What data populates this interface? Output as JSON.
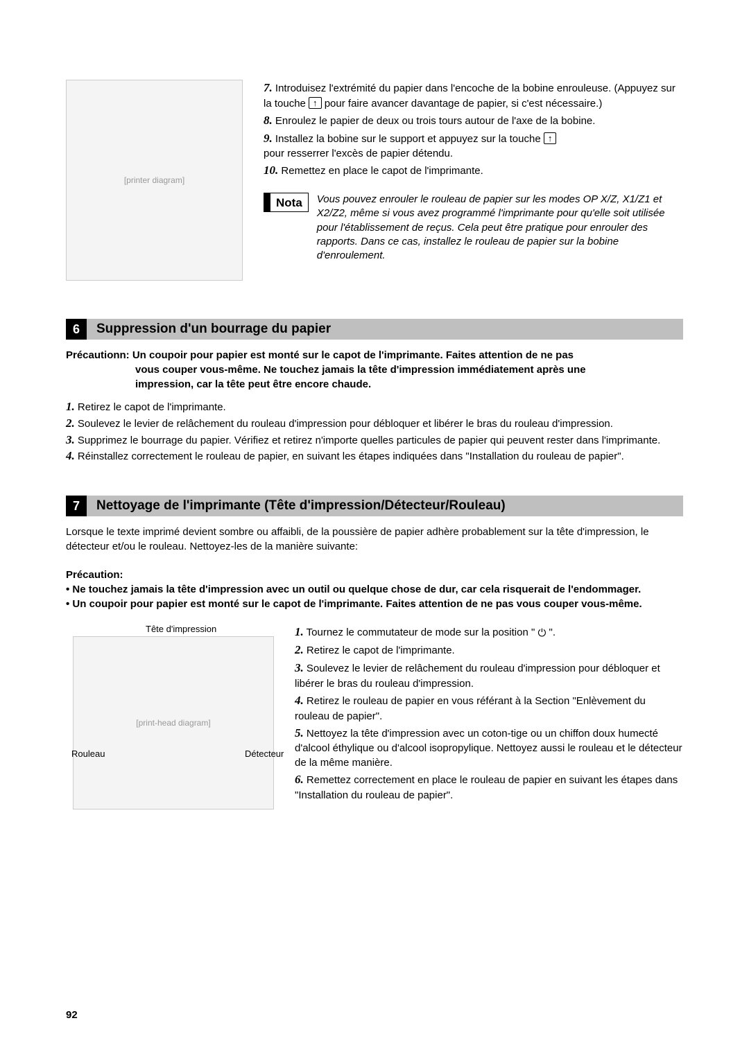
{
  "topSteps": {
    "s7a": "Introduisez l'extrémité du papier dans l'encoche de la bobine enrouleuse. (Appuyez sur la touche ",
    "s7b": " pour faire avancer davantage de papier, si c'est nécessaire.)",
    "s8": "Enroulez le papier de deux ou trois tours autour de l'axe de la bobine.",
    "s9a": "Installez la bobine sur le support et appuyez sur la touche ",
    "s9b": " pour resserrer l'excès de papier détendu.",
    "s10": "Remettez en place le capot de l'imprimante.",
    "keyUp": "↑"
  },
  "nota": {
    "label": "Nota",
    "text": "Vous pouvez enrouler le rouleau de papier sur les modes OP X/Z, X1/Z1 et X2/Z2, même si vous avez programmé l'imprimante pour qu'elle soit utilisée pour l'établissement de reçus. Cela peut être pratique pour enrouler des rapports. Dans ce cas, installez le rouleau de papier sur la bobine d'enroulement."
  },
  "section6": {
    "num": "6",
    "title": "Suppression d'un bourrage du papier",
    "precaution_lead": "Précautionn: Un coupoir pour papier est monté sur le capot de l'imprimante. Faites attention de ne pas",
    "precaution_l2": "vous couper vous-même. Ne touchez jamais la tête d'impression immédiatement après une",
    "precaution_l3": "impression, car la tête peut être encore chaude.",
    "s1": "Retirez le capot de l'imprimante.",
    "s2": "Soulevez le levier de relâchement du rouleau d'impression pour débloquer et libérer le bras du rouleau d'impression.",
    "s3": "Supprimez le bourrage du papier. Vérifiez et retirez n'importe quelles particules de papier qui peuvent rester dans l'imprimante.",
    "s4": "Réinstallez correctement le rouleau de papier, en suivant les étapes indiquées dans \"Installation du rouleau de papier\"."
  },
  "section7": {
    "num": "7",
    "title": "Nettoyage de l'imprimante (Tête d'impression/Détecteur/Rouleau)",
    "intro": "Lorsque le texte imprimé devient sombre ou affaibli, de la poussière de papier adhère probablement sur la tête d'impression, le détecteur et/ou le rouleau. Nettoyez-les de la manière suivante:",
    "caution_head": "Précaution:",
    "caution_b1": "• Ne touchez jamais la tête d'impression avec un outil ou quelque chose de dur, car cela risquerait de l'endommager.",
    "caution_b2": "• Un coupoir pour papier est monté sur le capot de l'imprimante. Faites attention de ne pas vous couper vous-même.",
    "labels": {
      "top": "Tête d'impression",
      "left": "Rouleau",
      "right": "Détecteur"
    },
    "s1a": "Tournez le commutateur de mode sur la position \" ",
    "s1b": " \".",
    "power": "⏻",
    "s2": "Retirez le capot de l'imprimante.",
    "s3": "Soulevez le levier de relâchement du rouleau d'impression pour débloquer et libérer le bras du rouleau d'impression.",
    "s4": "Retirez le rouleau de papier en vous référant à la Section \"Enlèvement du rouleau de papier\".",
    "s5": "Nettoyez la tête d'impression avec un coton-tige ou un chiffon doux humecté d'alcool éthylique ou d'alcool isopropylique. Nettoyez aussi le rouleau et le détecteur de la même manière.",
    "s6": "Remettez correctement en place le rouleau de papier en suivant les étapes dans \"Installation du rouleau de papier\"."
  },
  "pageNumber": "92",
  "placeholders": {
    "fig1": "[printer diagram]",
    "fig2": "[print-head diagram]"
  }
}
